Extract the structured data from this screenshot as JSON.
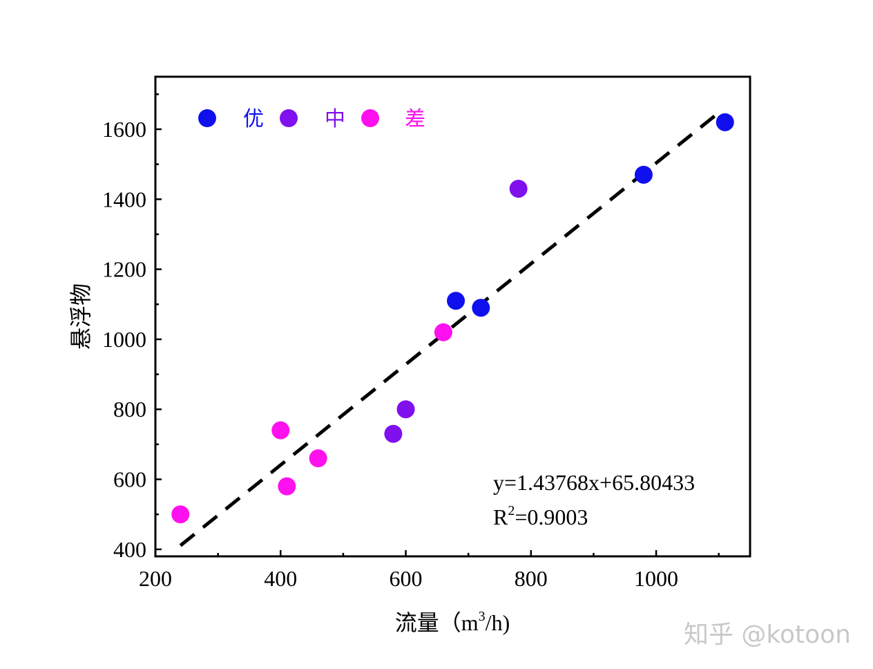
{
  "chart_data": {
    "type": "scatter",
    "title": "",
    "xlabel": "流量（m³/h)",
    "xlabel_main": "流量（m",
    "xlabel_sup": "3",
    "xlabel_tail": "/h)",
    "ylabel": "悬浮物",
    "xlim": [
      200,
      1150
    ],
    "ylim": [
      380,
      1750
    ],
    "xticks": [
      200,
      400,
      600,
      800,
      1000
    ],
    "yticks": [
      400,
      600,
      800,
      1000,
      1200,
      1400,
      1600
    ],
    "legend_position": "top-left",
    "series": [
      {
        "name": "优",
        "color": "#1010ee",
        "points": [
          [
            1110,
            1620
          ],
          [
            980,
            1470
          ],
          [
            680,
            1110
          ],
          [
            720,
            1090
          ]
        ]
      },
      {
        "name": "中",
        "color": "#8010ee",
        "points": [
          [
            780,
            1430
          ],
          [
            600,
            800
          ],
          [
            580,
            730
          ]
        ]
      },
      {
        "name": "差",
        "color": "#ff10ee",
        "points": [
          [
            660,
            1020
          ],
          [
            400,
            740
          ],
          [
            460,
            660
          ],
          [
            410,
            580
          ],
          [
            240,
            500
          ]
        ]
      }
    ],
    "fit_line": {
      "slope": 1.43768,
      "intercept": 65.80433,
      "x_range": [
        240,
        1100
      ],
      "style": "dashed",
      "color": "#000000"
    },
    "annotations": {
      "equation": "y=1.43768x+65.80433",
      "r2_main": "R",
      "r2_sup": "2",
      "r2_value": "=0.9003"
    }
  },
  "watermark": "知乎 @kotoon"
}
